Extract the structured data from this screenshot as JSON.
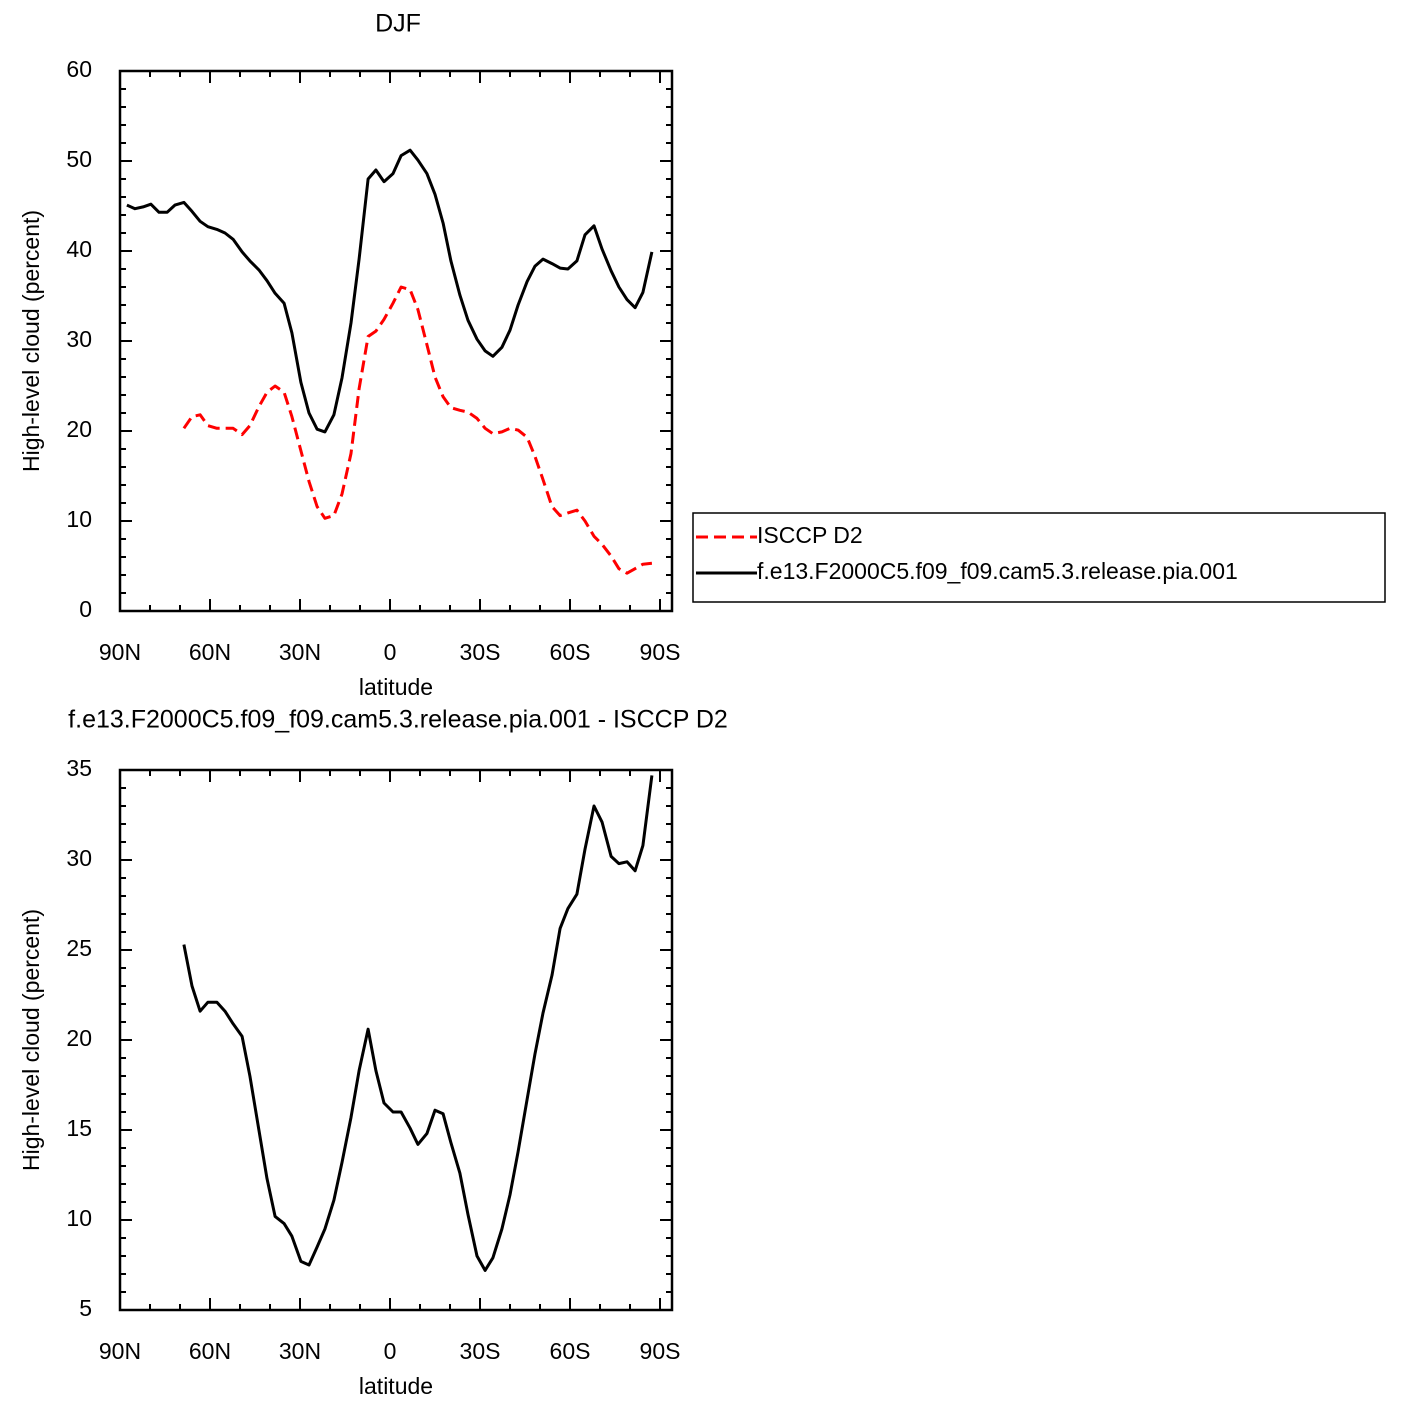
{
  "chart_data": [
    {
      "type": "line",
      "title": "DJF",
      "x_label": "latitude",
      "y_label": "High-level cloud (percent)",
      "x": [
        87.7,
        85,
        82.3,
        79.7,
        77,
        74.3,
        71.7,
        68.7,
        66,
        63.3,
        60.7,
        57.7,
        55,
        52.3,
        49.3,
        46.7,
        43.7,
        41,
        38.3,
        35.3,
        32.7,
        29.7,
        27,
        24.3,
        21.7,
        18.7,
        16,
        13,
        10.3,
        7.3,
        4.7,
        2,
        -1,
        -3.7,
        -6.7,
        -9.3,
        -12.3,
        -15,
        -17.7,
        -20.3,
        -23.3,
        -26,
        -29,
        -31.7,
        -34.3,
        -37.3,
        -40,
        -42.7,
        -45.7,
        -48.3,
        -51,
        -54,
        -56.7,
        -59.3,
        -62.3,
        -65,
        -68,
        -70.7,
        -73.7,
        -76.3,
        -79,
        -81.7,
        -84.3,
        -87.3
      ],
      "series": [
        {
          "name": "ISCCP D2",
          "color": "#ff0000",
          "dashed": true,
          "values": [
            null,
            null,
            null,
            null,
            null,
            null,
            null,
            20.3,
            21.6,
            21.8,
            20.6,
            20.3,
            20.3,
            20.3,
            19.6,
            20.6,
            22.7,
            24.3,
            25.0,
            24.3,
            21.6,
            17.8,
            14.4,
            11.6,
            10.3,
            10.6,
            13,
            17.5,
            24.7,
            30.5,
            31.1,
            32.4,
            34.2,
            36,
            35.7,
            33.5,
            29.6,
            26,
            23.8,
            22.6,
            22.3,
            22.1,
            21.4,
            20.3,
            19.7,
            19.9,
            20.3,
            20.1,
            19.3,
            17.2,
            14.6,
            11.6,
            10.6,
            10.9,
            11.2,
            10,
            8.3,
            7.4,
            6.1,
            4.7,
            4.2,
            4.7,
            5.2,
            5.3
          ]
        },
        {
          "name": "f.e13.F2000C5.f09_f09.cam5.3.release.pia.001",
          "color": "#000000",
          "dashed": false,
          "values": [
            45.1,
            44.7,
            44.9,
            45.2,
            44.3,
            44.3,
            45.1,
            45.4,
            44.4,
            43.3,
            42.7,
            42.4,
            42,
            41.3,
            39.9,
            38.9,
            37.9,
            36.7,
            35.3,
            34.2,
            30.9,
            25.4,
            22,
            20.2,
            19.9,
            21.8,
            25.9,
            32,
            39.1,
            48,
            49,
            47.7,
            48.6,
            50.6,
            51.2,
            50.1,
            48.6,
            46.3,
            43.1,
            38.9,
            35.1,
            32.3,
            30.2,
            28.9,
            28.3,
            29.3,
            31.2,
            34,
            36.6,
            38.3,
            39.1,
            38.6,
            38.1,
            38,
            38.9,
            41.8,
            42.8,
            40.2,
            37.8,
            36,
            34.6,
            33.7,
            35.4,
            39.9
          ]
        }
      ],
      "xlim": [
        90,
        -94
      ],
      "xticks": [
        {
          "value": 90,
          "label": "90N"
        },
        {
          "value": 60,
          "label": "60N"
        },
        {
          "value": 30,
          "label": "30N"
        },
        0,
        {
          "value": -30,
          "label": "30S"
        },
        {
          "value": -60,
          "label": "60S"
        },
        {
          "value": -90,
          "label": "90S"
        }
      ],
      "ylim": [
        0,
        60
      ],
      "yticks": [
        0,
        10,
        20,
        30,
        40,
        50,
        60
      ],
      "legend": "right"
    },
    {
      "type": "line",
      "title": "f.e13.F2000C5.f09_f09.cam5.3.release.pia.001 - ISCCP D2",
      "x_label": "latitude",
      "y_label": "High-level cloud (percent)",
      "x": [
        68.7,
        66,
        63.3,
        60.7,
        57.7,
        55,
        52.3,
        49.3,
        46.7,
        43.7,
        41,
        38.3,
        35.3,
        32.7,
        29.7,
        27,
        24.3,
        21.7,
        18.7,
        16,
        13,
        10.3,
        7.3,
        4.7,
        2,
        -1,
        -3.7,
        -6.7,
        -9.3,
        -12.3,
        -15,
        -17.7,
        -20.3,
        -23.3,
        -26,
        -29,
        -31.7,
        -34.3,
        -37.3,
        -40,
        -42.7,
        -45.7,
        -48.3,
        -51,
        -54,
        -56.7,
        -59.3,
        -62.3,
        -65,
        -68,
        -70.7,
        -73.7,
        -76.3,
        -79,
        -81.7,
        -84.3,
        -87.3
      ],
      "values": [
        25.3,
        23,
        21.6,
        22.1,
        22.1,
        21.6,
        20.9,
        20.2,
        18,
        15,
        12.3,
        10.2,
        9.8,
        9.1,
        7.7,
        7.5,
        8.5,
        9.5,
        11.1,
        13.2,
        15.7,
        18.3,
        20.6,
        18.3,
        16.5,
        16,
        16,
        15.1,
        14.2,
        14.8,
        16.1,
        15.9,
        14.3,
        12.6,
        10.3,
        8,
        7.2,
        7.9,
        9.5,
        11.4,
        13.8,
        16.7,
        19.2,
        21.5,
        23.6,
        26.2,
        27.3,
        28.1,
        30.6,
        33,
        32.1,
        30.2,
        29.8,
        29.9,
        29.4,
        30.8,
        34.7
      ],
      "color": "#000000",
      "xlim": [
        90,
        -94
      ],
      "xticks": [
        {
          "value": 90,
          "label": "90N"
        },
        {
          "value": 60,
          "label": "60N"
        },
        {
          "value": 30,
          "label": "30N"
        },
        0,
        {
          "value": -30,
          "label": "30S"
        },
        {
          "value": -60,
          "label": "60S"
        },
        {
          "value": -90,
          "label": "90S"
        }
      ],
      "ylim": [
        5,
        35
      ],
      "yticks": [
        5,
        10,
        15,
        20,
        25,
        30,
        35
      ]
    }
  ]
}
